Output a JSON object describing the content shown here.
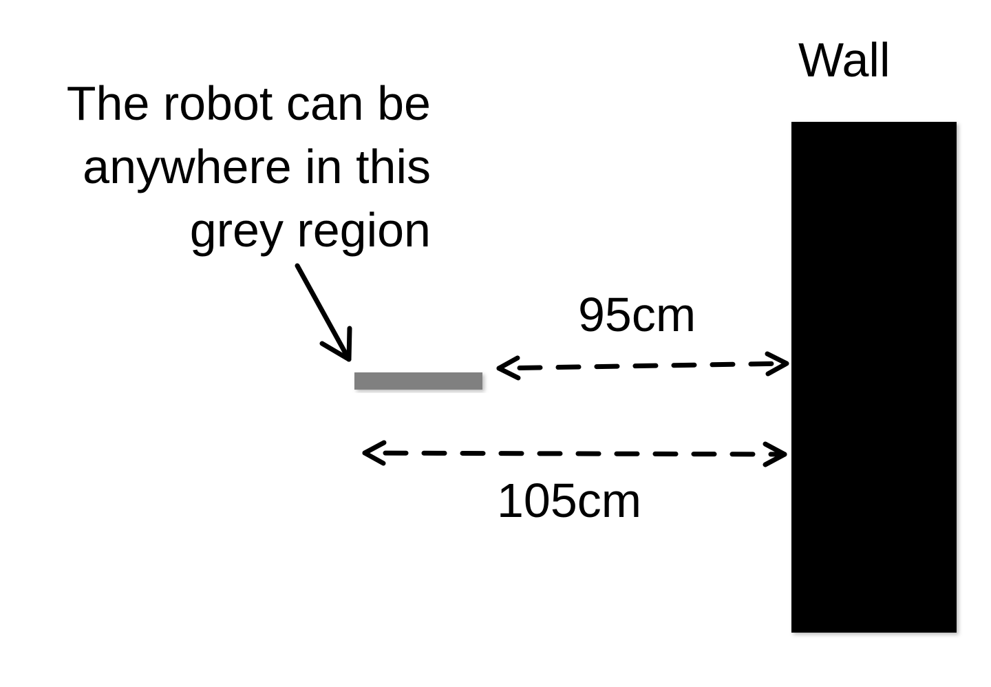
{
  "caption": {
    "line1": "The robot can be",
    "line2": "anywhere in this",
    "line3": "grey region"
  },
  "wall": {
    "label": "Wall",
    "color": "#000000"
  },
  "region": {
    "color": "#808080"
  },
  "distances": {
    "near": "95cm",
    "far": "105cm"
  },
  "icons": {
    "pointer": "arrow-pointer-icon",
    "dimension": "double-headed-dashed-arrow-icon"
  }
}
